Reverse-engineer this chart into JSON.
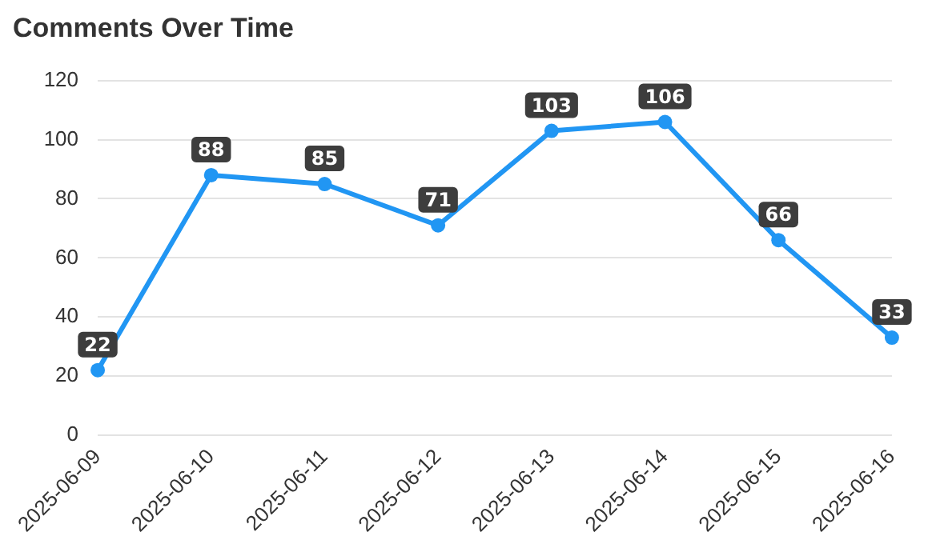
{
  "chart_data": {
    "type": "line",
    "title": "Comments Over Time",
    "categories": [
      "2025-06-09",
      "2025-06-10",
      "2025-06-11",
      "2025-06-12",
      "2025-06-13",
      "2025-06-14",
      "2025-06-15",
      "2025-06-16"
    ],
    "series": [
      {
        "color": "#2196f3",
        "values": [
          22,
          88,
          85,
          71,
          103,
          106,
          66,
          33
        ]
      }
    ],
    "ylim": [
      0,
      120
    ],
    "yticks": [
      0,
      20,
      40,
      60,
      80,
      100,
      120
    ],
    "grid": "y",
    "legend": false,
    "marker": "circle",
    "line_style": "solid",
    "data_labels": true
  }
}
